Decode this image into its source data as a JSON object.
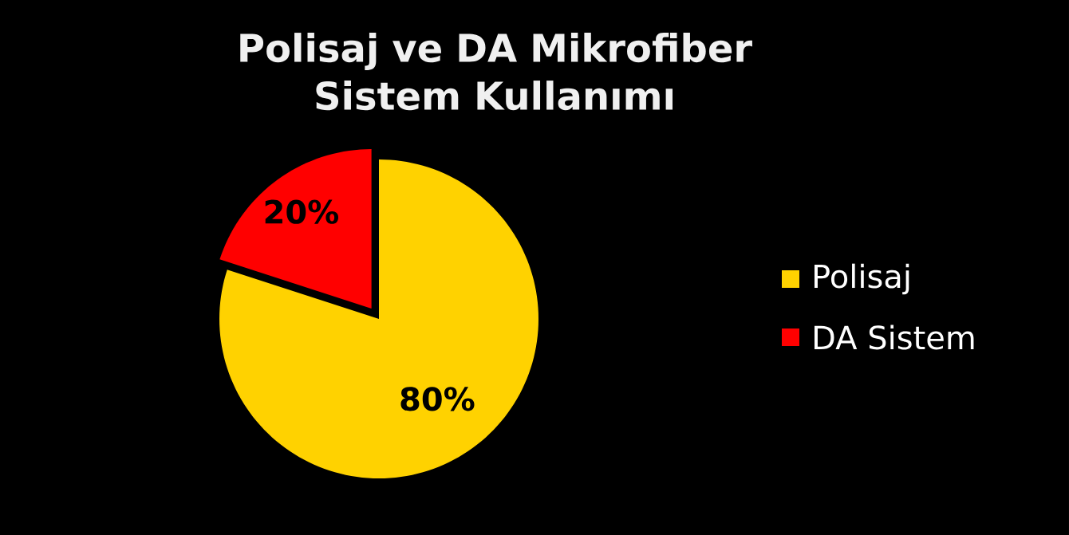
{
  "chart_data": {
    "type": "pie",
    "title": "Polisaj ve DA Mikrofiber Sistem Kullanımı",
    "categories": [
      "Polisaj",
      "DA Sistem"
    ],
    "values": [
      80,
      20
    ],
    "colors": [
      "#ffd200",
      "#ff0000"
    ],
    "value_labels": [
      "80%",
      "20%"
    ],
    "legend": "right"
  }
}
